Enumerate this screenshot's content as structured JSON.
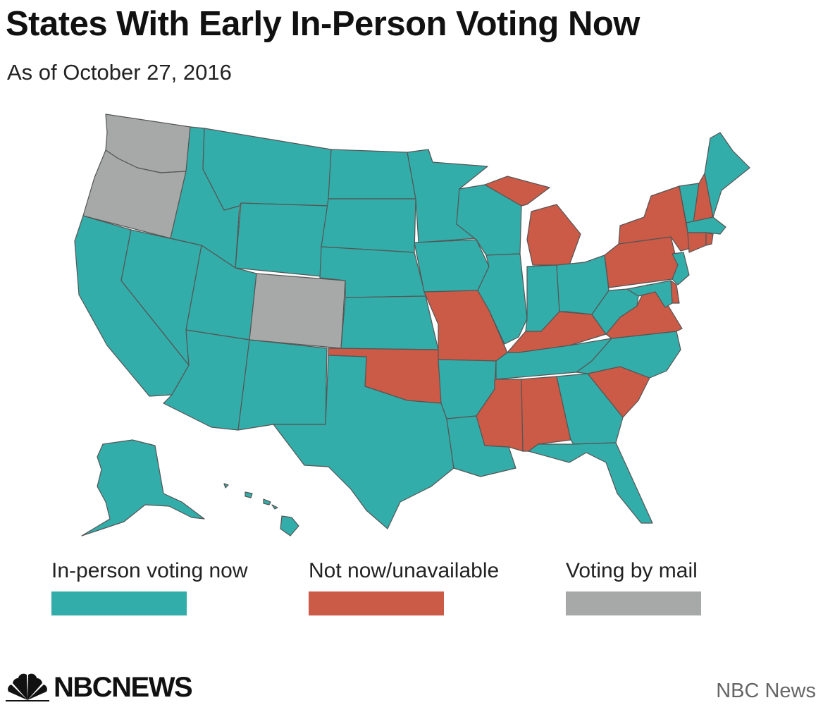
{
  "title": "States With Early In-Person Voting Now",
  "subtitle": "As of October 27, 2016",
  "colors": {
    "in_person": "#33ADA9",
    "not_now": "#CB5A47",
    "mail": "#A7A8A8",
    "border": "#555555"
  },
  "legend": [
    {
      "key": "in_person",
      "label": "In-person voting now"
    },
    {
      "key": "not_now",
      "label": "Not now/unavailable"
    },
    {
      "key": "mail",
      "label": "Voting by mail"
    }
  ],
  "states": {
    "WA": "mail",
    "OR": "mail",
    "CO": "mail",
    "CA": "in_person",
    "NV": "in_person",
    "ID": "in_person",
    "MT": "in_person",
    "WY": "in_person",
    "UT": "in_person",
    "AZ": "in_person",
    "NM": "in_person",
    "ND": "in_person",
    "SD": "in_person",
    "NE": "in_person",
    "KS": "in_person",
    "TX": "in_person",
    "MN": "in_person",
    "IA": "in_person",
    "AR": "in_person",
    "LA": "in_person",
    "WI": "in_person",
    "IL": "in_person",
    "IN": "in_person",
    "OH": "in_person",
    "TN": "in_person",
    "GA": "in_person",
    "FL": "in_person",
    "NC": "in_person",
    "WV": "in_person",
    "VT": "in_person",
    "ME": "in_person",
    "MA": "in_person",
    "NJ": "in_person",
    "MD": "in_person",
    "AK": "in_person",
    "HI": "in_person",
    "MO": "not_now",
    "OK": "not_now",
    "MI": "not_now",
    "KY": "not_now",
    "MS": "not_now",
    "AL": "not_now",
    "SC": "not_now",
    "VA": "not_now",
    "PA": "not_now",
    "NY": "not_now",
    "NH": "not_now",
    "CT": "not_now",
    "RI": "not_now",
    "DE": "not_now"
  },
  "logo": {
    "text": "NBCNEWS"
  },
  "source": "NBC News"
}
